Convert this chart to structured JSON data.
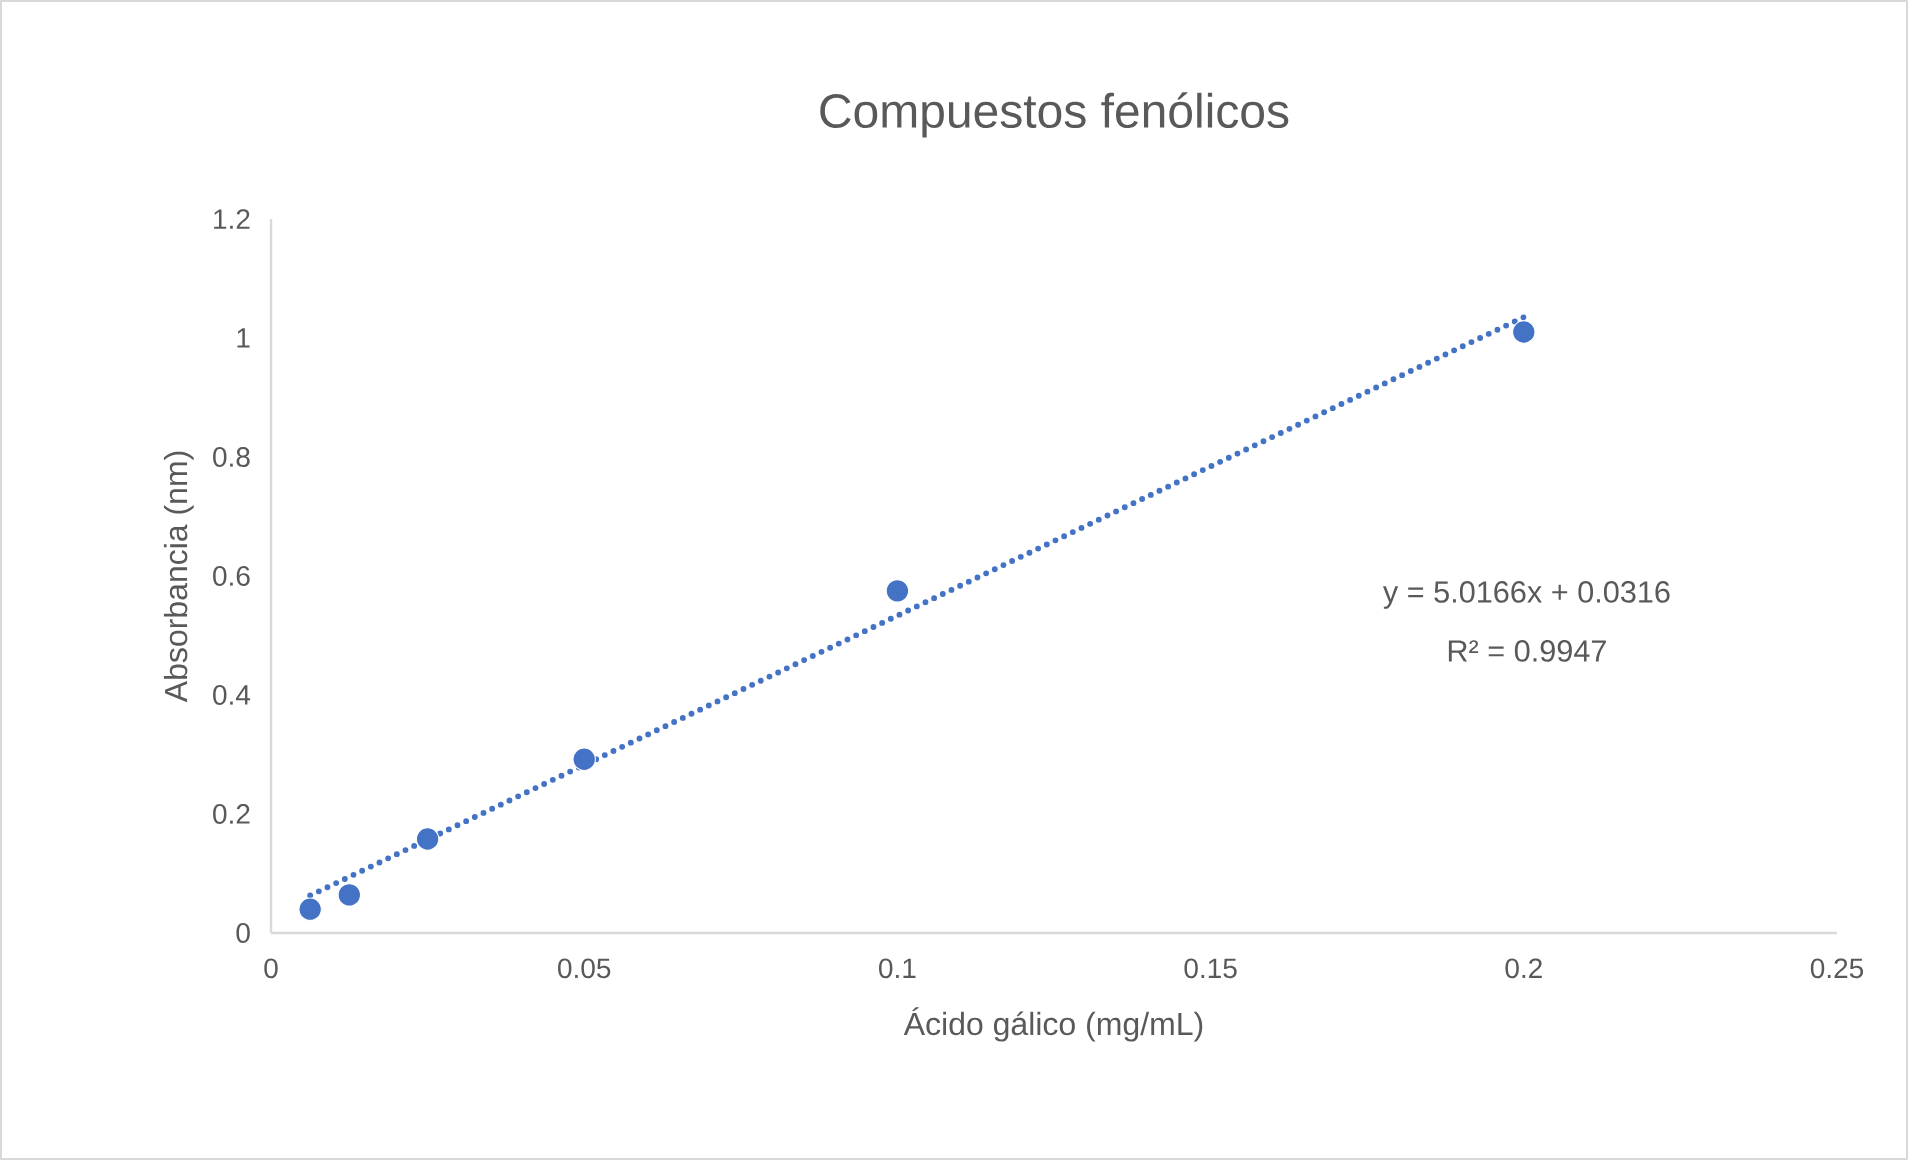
{
  "chart_data": {
    "type": "scatter",
    "title": "Compuestos fenólicos",
    "xlabel": "Ácido gálico (mg/mL)",
    "ylabel": "Absorbancia (nm)",
    "x": [
      0.00625,
      0.0125,
      0.025,
      0.05,
      0.1,
      0.2
    ],
    "series": [
      {
        "color": "#4472c4",
        "marker": "circle",
        "values": [
          0.04,
          0.064,
          0.158,
          0.292,
          0.575,
          1.01
        ]
      },
      {
        "type": "line",
        "color": "#4472c4",
        "marker": "none",
        "line_style": "dotted",
        "x": [
          0.00625,
          0.2
        ],
        "values": [
          0.063,
          1.035
        ]
      }
    ],
    "xlim": [
      0,
      0.25
    ],
    "ylim": [
      0,
      1.2
    ],
    "xticks": [
      0,
      0.05,
      0.1,
      0.15,
      0.2,
      0.25
    ],
    "yticks": [
      0,
      0.2,
      0.4,
      0.6,
      0.8,
      1,
      1.2
    ],
    "annotations": [
      "y = 5.0166x + 0.0316",
      "R² = 0.9947"
    ]
  }
}
